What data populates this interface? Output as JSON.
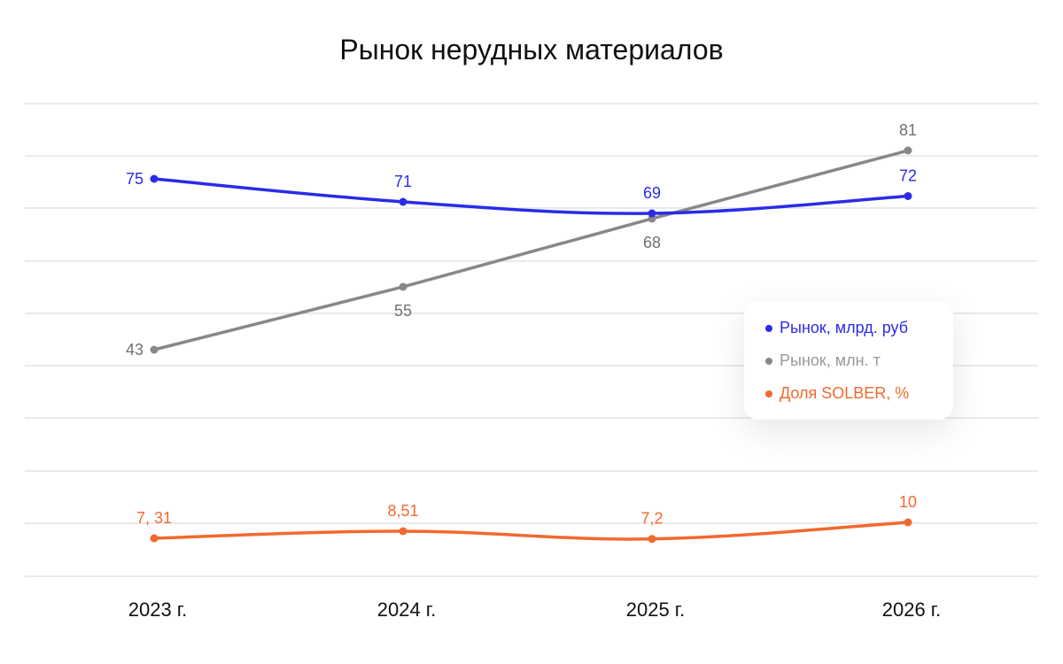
{
  "chart_data": {
    "type": "line",
    "title": "Рынок нерудных материалов",
    "categories": [
      "2023 г.",
      "2024 г.",
      "2025 г.",
      "2026 г."
    ],
    "xlabel": "",
    "ylabel": "",
    "grid": true,
    "legend_position": "right",
    "series": [
      {
        "name": "Рынок, млрд. руб",
        "color": "#2B2BE8",
        "values": [
          75,
          71,
          69,
          72
        ],
        "labels": [
          "75",
          "71",
          "69",
          "72"
        ],
        "curve": "smooth",
        "label_position": [
          "left",
          "above",
          "above",
          "above"
        ]
      },
      {
        "name": "Рынок, млн. т",
        "color": "#888888",
        "values": [
          43,
          55,
          68,
          81
        ],
        "labels": [
          "43",
          "55",
          "68",
          "81"
        ],
        "curve": "straight",
        "label_position": [
          "left",
          "below",
          "below",
          "above"
        ]
      },
      {
        "name": "Доля SOLBER, %",
        "color": "#F2692E",
        "values": [
          7.31,
          8.51,
          7.2,
          10
        ],
        "labels": [
          "7, 31",
          "8,51",
          "7,2",
          "10"
        ],
        "curve": "smooth",
        "label_position": [
          "above",
          "above",
          "above",
          "above"
        ]
      }
    ]
  }
}
